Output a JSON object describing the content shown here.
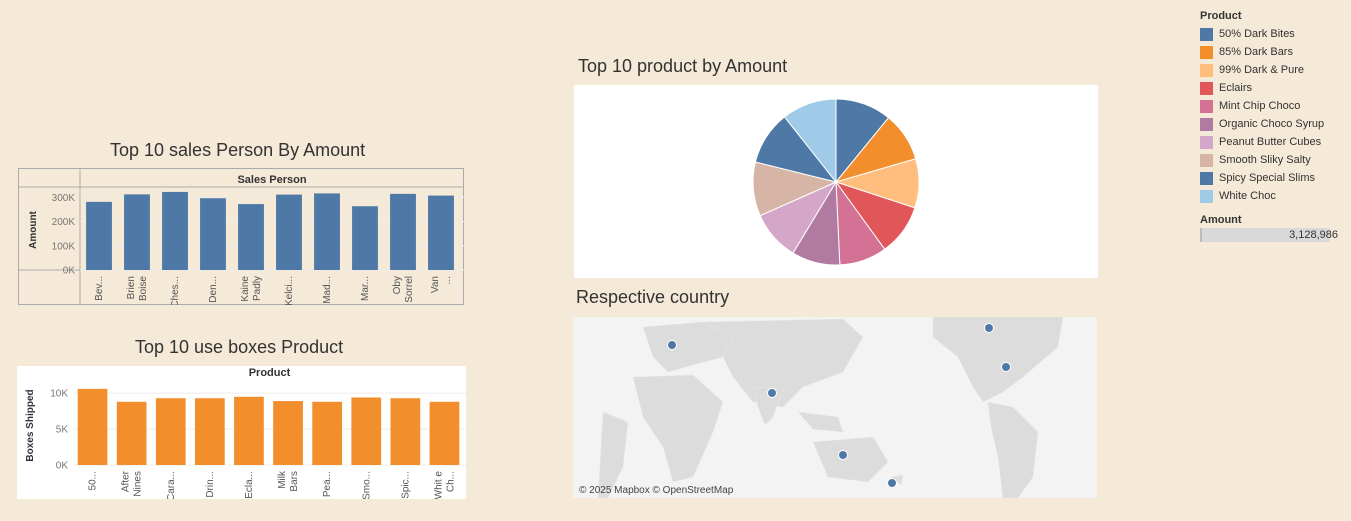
{
  "titles": {
    "sales_person": "Top 10 sales Person By Amount",
    "product_pie": "Top 10 product by Amount",
    "boxes": "Top 10 use boxes Product",
    "country": "Respective country"
  },
  "legend": {
    "title": "Product",
    "items": [
      {
        "label": "50% Dark Bites",
        "color": "#4e79a7"
      },
      {
        "label": "85% Dark Bars",
        "color": "#f28e2b"
      },
      {
        "label": "99% Dark & Pure",
        "color": "#ffbe7d"
      },
      {
        "label": "Eclairs",
        "color": "#e15759"
      },
      {
        "label": "Mint Chip Choco",
        "color": "#d37295"
      },
      {
        "label": "Organic Choco Syrup",
        "color": "#b07aa1"
      },
      {
        "label": "Peanut Butter Cubes",
        "color": "#d4a6c8"
      },
      {
        "label": "Smooth Sliky Salty",
        "color": "#d7b5a6"
      },
      {
        "label": "Spicy Special Slims",
        "color": "#4e79a7"
      },
      {
        "label": "White Choc",
        "color": "#a0cbe8"
      }
    ],
    "amount_title": "Amount",
    "amount_value": "3,128,986"
  },
  "map_attribution": "© 2025 Mapbox © OpenStreetMap",
  "chart_data": [
    {
      "type": "bar",
      "title": "Top 10 sales Person By Amount",
      "header": "Sales Person",
      "ylabel": "Amount",
      "yticks": [
        "300K",
        "200K",
        "100K",
        "0K"
      ],
      "ylim": [
        0,
        330000
      ],
      "categories": [
        "Bev...",
        "Brien Boise",
        "Ches...",
        "Den...",
        "Kaine Padly",
        "Kelci...",
        "Mad...",
        "Mar...",
        "Oby Sorrel",
        "Van ..."
      ],
      "values": [
        281000,
        312000,
        322000,
        296000,
        272000,
        311000,
        316000,
        263000,
        314000,
        307000
      ],
      "color": "#4e79a7"
    },
    {
      "type": "bar",
      "title": "Top 10 use boxes Product",
      "header": "Product",
      "ylabel": "Boxes Shipped",
      "yticks": [
        "10K",
        "5K",
        "0K"
      ],
      "ylim": [
        0,
        11000
      ],
      "categories": [
        "50...",
        "After Nines",
        "Cara...",
        "Drin...",
        "Ecla...",
        "Milk Bars",
        "Pea...",
        "Smo...",
        "Spic...",
        "Whit e Ch..."
      ],
      "values": [
        10600,
        8800,
        9300,
        9300,
        9500,
        8900,
        8800,
        9400,
        9300,
        8800
      ],
      "color": "#f28e2b"
    },
    {
      "type": "pie",
      "title": "Top 10 product by Amount",
      "categories": [
        "50% Dark Bites",
        "85% Dark Bars",
        "99% Dark & Pure",
        "Eclairs",
        "Mint Chip Choco",
        "Organic Choco Syrup",
        "Peanut Butter Cubes",
        "Smooth Sliky Salty",
        "Spicy Special Slims",
        "White Choc"
      ],
      "values": [
        341000,
        300000,
        299000,
        312000,
        289000,
        294000,
        303000,
        329000,
        328000,
        333000
      ],
      "colors": [
        "#4e79a7",
        "#f28e2b",
        "#ffbe7d",
        "#e15759",
        "#d37295",
        "#b07aa1",
        "#d4a6c8",
        "#d7b5a6",
        "#4e79a7",
        "#a0cbe8"
      ]
    }
  ]
}
